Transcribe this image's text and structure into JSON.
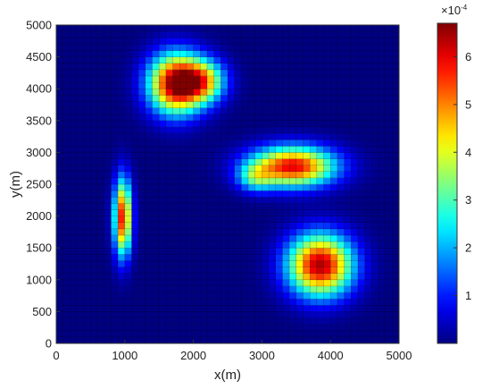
{
  "chart_data": {
    "type": "heatmap",
    "xlabel": "x(m)",
    "ylabel": "y(m)",
    "xlim": [
      0,
      5000
    ],
    "ylim": [
      0,
      5000
    ],
    "x_ticks": [
      "0",
      "1000",
      "2000",
      "3000",
      "4000",
      "5000"
    ],
    "y_ticks": [
      "0",
      "500",
      "1000",
      "1500",
      "2000",
      "2500",
      "3000",
      "3500",
      "4000",
      "4500",
      "5000"
    ],
    "grid_cells": [
      50,
      50
    ],
    "colormap": "jet",
    "colorbar": {
      "range": [
        0,
        0.00067
      ],
      "ticks": [
        "1",
        "2",
        "3",
        "4",
        "5",
        "6"
      ],
      "tick_values": [
        0.0001,
        0.0002,
        0.0003,
        0.0004,
        0.0005,
        0.0006
      ],
      "multiplier_base": "×10",
      "multiplier_exp": "-4"
    },
    "hotspots": [
      {
        "x": 1750,
        "y": 4080,
        "sx": 280,
        "sy": 330,
        "peak": 0.00066
      },
      {
        "x": 2150,
        "y": 4120,
        "sx": 230,
        "sy": 230,
        "peak": 0.00036
      },
      {
        "x": 3450,
        "y": 2780,
        "sx": 430,
        "sy": 220,
        "peak": 0.0006
      },
      {
        "x": 3850,
        "y": 1230,
        "sx": 330,
        "sy": 340,
        "peak": 0.00064
      },
      {
        "x": 970,
        "y": 1980,
        "sx": 90,
        "sy": 420,
        "peak": 0.00058
      },
      {
        "x": 2900,
        "y": 2600,
        "sx": 180,
        "sy": 150,
        "peak": 0.0002
      }
    ]
  }
}
